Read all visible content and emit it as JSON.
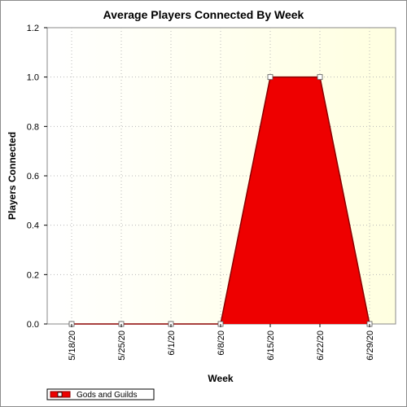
{
  "chart_data": {
    "type": "area",
    "title": "Average Players Connected By Week",
    "xlabel": "Week",
    "ylabel": "Players Connected",
    "categories": [
      "5/18/20",
      "5/25/20",
      "6/1/20",
      "6/8/20",
      "6/15/20",
      "6/22/20",
      "6/29/20"
    ],
    "series": [
      {
        "name": "Gods and Guilds",
        "values": [
          0,
          0,
          0,
          0,
          1.0,
          1.0,
          0
        ]
      }
    ],
    "ylim": [
      0,
      1.2
    ],
    "yticks": [
      "0.0",
      "0.2",
      "0.4",
      "0.6",
      "0.8",
      "1.0",
      "1.2"
    ],
    "grid": true,
    "legend_position": "bottom-left",
    "colors": {
      "fill": "#ee0000",
      "line": "#8b0000",
      "marker_fill": "#ffffff",
      "plot_bg_light": "#ffffe8",
      "plot_bg": "#ffffff"
    }
  }
}
